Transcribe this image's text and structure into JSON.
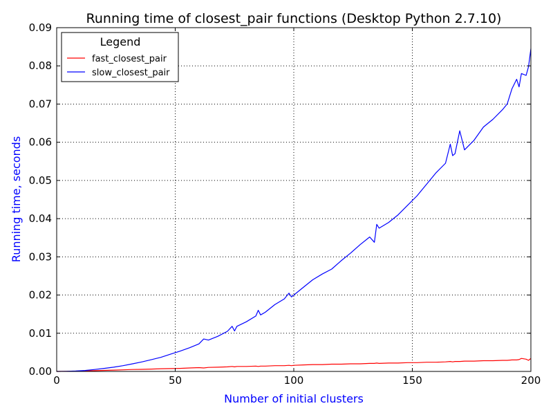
{
  "chart_data": {
    "type": "line",
    "title": "Running time of closest_pair functions (Desktop Python 2.7.10)",
    "xlabel": "Number of initial clusters",
    "ylabel": "Running time, seconds",
    "xlim": [
      0,
      200
    ],
    "ylim": [
      0,
      0.09
    ],
    "xticks": [
      0,
      50,
      100,
      150,
      200
    ],
    "xtick_labels": [
      "0",
      "50",
      "100",
      "150",
      "200"
    ],
    "yticks": [
      0,
      0.01,
      0.02,
      0.03,
      0.04,
      0.05,
      0.06,
      0.07,
      0.08,
      0.09
    ],
    "ytick_labels": [
      "0.00",
      "0.01",
      "0.02",
      "0.03",
      "0.04",
      "0.05",
      "0.06",
      "0.07",
      "0.08",
      "0.09"
    ],
    "grid": true,
    "grid_style": "dotted",
    "legend": {
      "title": "Legend",
      "placement": "top-left"
    },
    "x": [
      0,
      4,
      8,
      12,
      16,
      20,
      24,
      28,
      32,
      36,
      40,
      44,
      48,
      52,
      56,
      60,
      62,
      64,
      68,
      72,
      74,
      75,
      76,
      80,
      84,
      85,
      86,
      88,
      92,
      96,
      98,
      99,
      100,
      104,
      108,
      112,
      116,
      120,
      124,
      128,
      132,
      134,
      135,
      136,
      140,
      144,
      148,
      152,
      156,
      160,
      164,
      166,
      167,
      168,
      170,
      172,
      176,
      180,
      184,
      188,
      190,
      192,
      194,
      195,
      196,
      198,
      199,
      200
    ],
    "series": [
      {
        "name": "fast_closest_pair",
        "color": "#ff0000",
        "values": [
          0.0,
          4e-05,
          8e-05,
          0.00015,
          0.0002,
          0.00028,
          0.00035,
          0.00042,
          0.0005,
          0.00055,
          0.00062,
          0.0007,
          0.00075,
          0.0008,
          0.0009,
          0.001,
          0.0009,
          0.00105,
          0.0011,
          0.0012,
          0.0013,
          0.0012,
          0.0013,
          0.0013,
          0.0014,
          0.0013,
          0.0014,
          0.0014,
          0.0015,
          0.0015,
          0.0016,
          0.0015,
          0.0016,
          0.0017,
          0.0018,
          0.0018,
          0.0019,
          0.0019,
          0.002,
          0.002,
          0.0021,
          0.0021,
          0.0022,
          0.0021,
          0.0022,
          0.0022,
          0.0023,
          0.0023,
          0.0024,
          0.0024,
          0.0025,
          0.0026,
          0.0025,
          0.0026,
          0.0026,
          0.0027,
          0.0027,
          0.0028,
          0.0028,
          0.0029,
          0.0029,
          0.003,
          0.003,
          0.0031,
          0.0034,
          0.0032,
          0.0029,
          0.0034
        ]
      },
      {
        "name": "slow_closest_pair",
        "color": "#0000ff",
        "values": [
          0.0,
          3e-05,
          0.0001,
          0.00025,
          0.0005,
          0.0008,
          0.0011,
          0.0015,
          0.002,
          0.0025,
          0.0031,
          0.0037,
          0.0045,
          0.0053,
          0.0062,
          0.0072,
          0.0085,
          0.0082,
          0.0092,
          0.0105,
          0.0118,
          0.0106,
          0.0118,
          0.013,
          0.0145,
          0.016,
          0.0148,
          0.0155,
          0.0175,
          0.019,
          0.0205,
          0.0195,
          0.02,
          0.022,
          0.024,
          0.0255,
          0.0268,
          0.029,
          0.031,
          0.0332,
          0.0352,
          0.0338,
          0.0385,
          0.0375,
          0.039,
          0.041,
          0.0435,
          0.046,
          0.049,
          0.052,
          0.0545,
          0.0595,
          0.0565,
          0.057,
          0.063,
          0.058,
          0.0605,
          0.064,
          0.066,
          0.0685,
          0.07,
          0.074,
          0.0765,
          0.0745,
          0.078,
          0.0775,
          0.0798,
          0.0845
        ]
      }
    ]
  }
}
